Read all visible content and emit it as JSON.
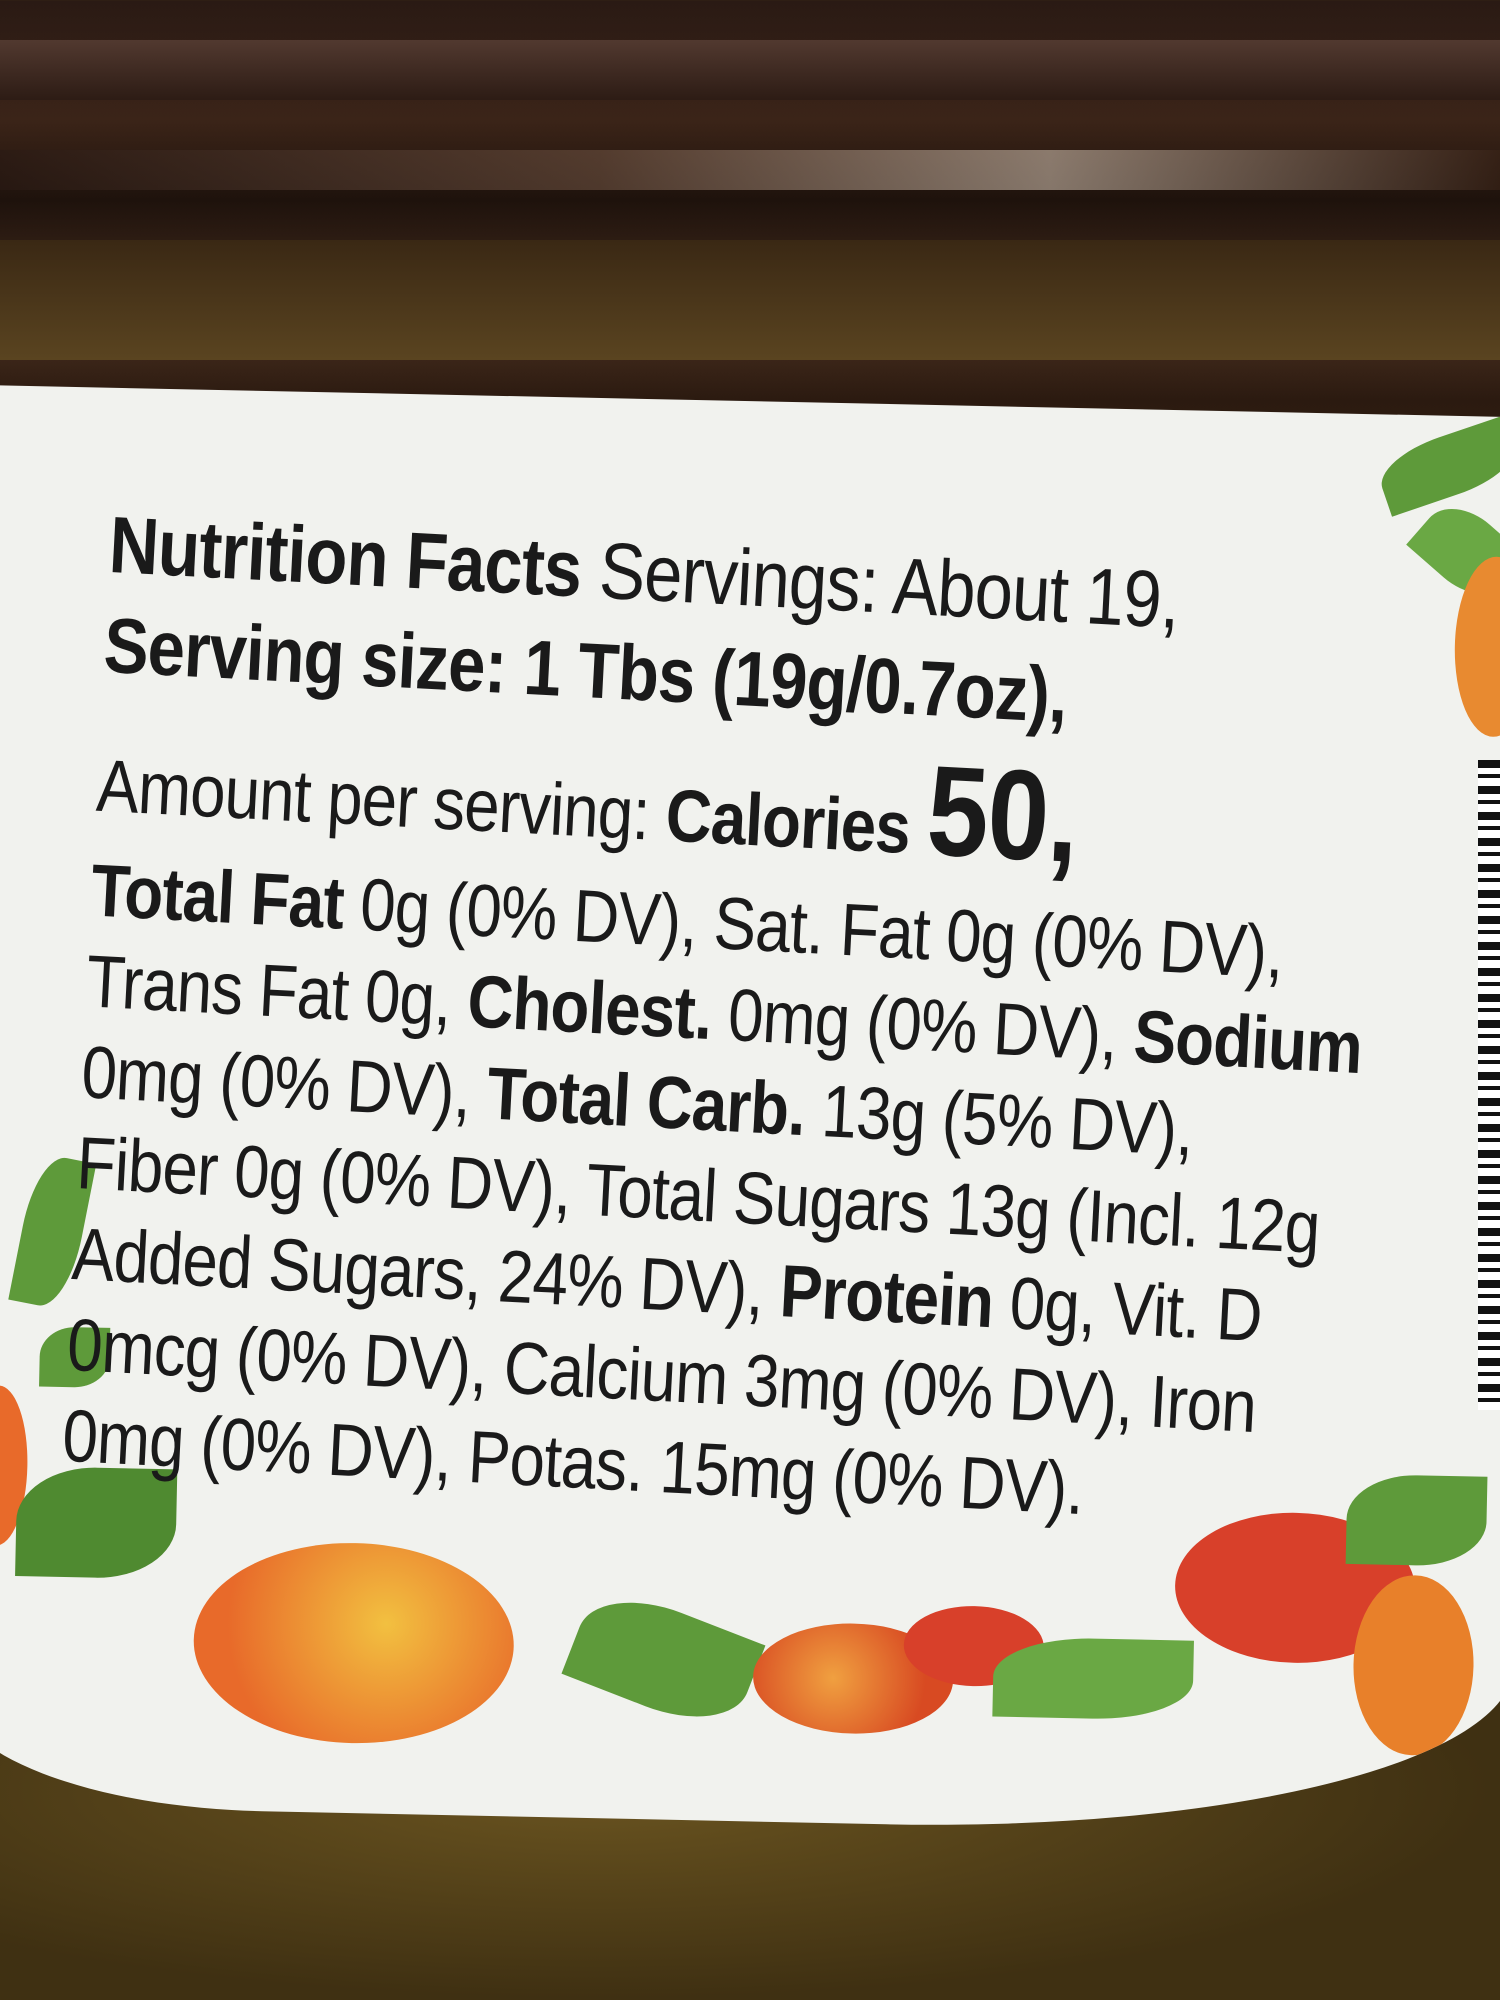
{
  "nutrition_label": {
    "lines": [
      [
        {
          "text": "Nutrition Facts",
          "style": "b"
        },
        {
          "text": " Servings: About 19,",
          "style": ""
        }
      ],
      [
        {
          "text": "Serving size: 1 Tbs (19g/0.7oz),",
          "style": "b"
        }
      ],
      [
        {
          "text": "Amount per serving: ",
          "style": ""
        },
        {
          "text": "Calories ",
          "style": "b"
        },
        {
          "text": "50,",
          "style": "big"
        }
      ],
      [
        {
          "text": "Total Fat",
          "style": "b"
        },
        {
          "text": " 0g (0% DV), Sat. Fat 0g (0% DV),",
          "style": ""
        }
      ],
      [
        {
          "text": "Trans Fat 0g, ",
          "style": ""
        },
        {
          "text": "Cholest.",
          "style": "b"
        },
        {
          "text": " 0mg (0% DV), ",
          "style": ""
        },
        {
          "text": "Sodium",
          "style": "b"
        }
      ],
      [
        {
          "text": "0mg (0% DV), ",
          "style": ""
        },
        {
          "text": "Total Carb.",
          "style": "b"
        },
        {
          "text": " 13g (5% DV),",
          "style": ""
        }
      ],
      [
        {
          "text": "Fiber 0g (0% DV), Total Sugars 13g (Incl. 12g",
          "style": ""
        }
      ],
      [
        {
          "text": "Added Sugars, 24% DV), ",
          "style": ""
        },
        {
          "text": "Protein",
          "style": "b"
        },
        {
          "text": " 0g, Vit. D",
          "style": ""
        }
      ],
      [
        {
          "text": "0mcg (0% DV), Calcium 3mg (0% DV), Iron",
          "style": ""
        }
      ],
      [
        {
          "text": "0mg (0% DV), Potas. 15mg (0% DV).",
          "style": ""
        }
      ]
    ]
  },
  "colors": {
    "label": "#f1f2ee",
    "jar": "#3b2418",
    "text": "#1a1a1a",
    "leaf": "#5e9a3a",
    "fruit": "#e8632a"
  }
}
